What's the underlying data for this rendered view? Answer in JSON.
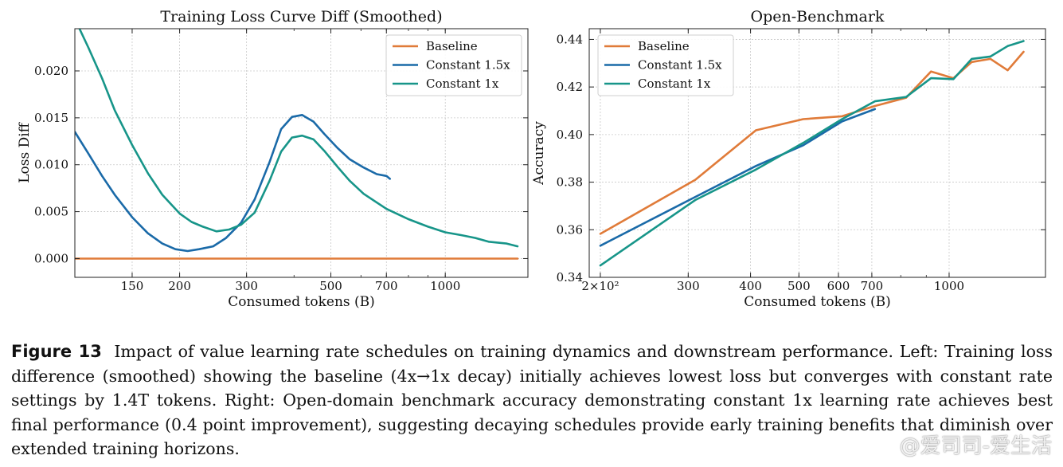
{
  "colors": {
    "baseline": "#e07b39",
    "constant_1_5x": "#1a6aa8",
    "constant_1x": "#179589"
  },
  "chart_data": [
    {
      "type": "line",
      "title": "Training Loss Curve Diff (Smoothed)",
      "xlabel": "Consumed tokens (B)",
      "ylabel": "Loss Diff",
      "xscale": "log",
      "xlim": [
        106,
        1650
      ],
      "ylim": [
        -0.002,
        0.0245
      ],
      "xticks": [
        150,
        200,
        300,
        500,
        700,
        1000
      ],
      "xtick_labels": [
        "150",
        "200",
        "300",
        "500",
        "700",
        "1000"
      ],
      "yticks": [
        0.0,
        0.005,
        0.01,
        0.015,
        0.02
      ],
      "ytick_labels": [
        "0.000",
        "0.005",
        "0.010",
        "0.015",
        "0.020"
      ],
      "grid": true,
      "legend_position": "top-right",
      "series": [
        {
          "name": "Baseline",
          "color": "#e07b39",
          "x": [
            106,
            200,
            400,
            800,
            1200,
            1550
          ],
          "y": [
            0,
            0,
            0,
            0,
            0,
            0
          ]
        },
        {
          "name": "Constant 1.5x",
          "color": "#1a6aa8",
          "x": [
            106,
            115,
            125,
            135,
            150,
            165,
            180,
            195,
            210,
            225,
            245,
            265,
            290,
            315,
            345,
            370,
            395,
            420,
            450,
            480,
            520,
            560,
            610,
            660,
            700,
            715
          ],
          "y": [
            0.0135,
            0.0112,
            0.0088,
            0.0068,
            0.0044,
            0.0027,
            0.0016,
            0.001,
            0.0008,
            0.001,
            0.0013,
            0.0022,
            0.0038,
            0.0063,
            0.0103,
            0.0138,
            0.0151,
            0.0153,
            0.0146,
            0.0133,
            0.0118,
            0.0106,
            0.0097,
            0.009,
            0.0088,
            0.0085
          ]
        },
        {
          "name": "Constant 1x",
          "color": "#179589",
          "x": [
            109,
            115,
            125,
            135,
            150,
            165,
            180,
            200,
            215,
            230,
            250,
            270,
            290,
            315,
            345,
            370,
            395,
            420,
            450,
            480,
            520,
            560,
            610,
            700,
            800,
            900,
            1000,
            1100,
            1200,
            1300,
            1450,
            1550
          ],
          "y": [
            0.0245,
            0.0225,
            0.0192,
            0.0158,
            0.0121,
            0.0091,
            0.0068,
            0.0048,
            0.0039,
            0.0034,
            0.0029,
            0.0031,
            0.0036,
            0.0049,
            0.0083,
            0.0114,
            0.0129,
            0.0131,
            0.0127,
            0.0115,
            0.0098,
            0.0083,
            0.0069,
            0.0053,
            0.0042,
            0.0034,
            0.0028,
            0.0025,
            0.0022,
            0.0018,
            0.0016,
            0.0013
          ]
        }
      ]
    },
    {
      "type": "line",
      "title": "Open-Benchmark",
      "xlabel": "Consumed tokens (B)",
      "ylabel": "Accuracy",
      "xscale": "log",
      "xlim": [
        190,
        1560
      ],
      "ylim": [
        0.34,
        0.4445
      ],
      "xticks": [
        200,
        300,
        400,
        500,
        600,
        700,
        1000
      ],
      "xtick_labels": [
        "2×10²",
        "300",
        "400",
        "500",
        "600",
        "700",
        "1000"
      ],
      "yticks": [
        0.34,
        0.36,
        0.38,
        0.4,
        0.42,
        0.44
      ],
      "ytick_labels": [
        "0.34",
        "0.36",
        "0.38",
        "0.40",
        "0.42",
        "0.44"
      ],
      "grid": true,
      "legend_position": "top-left",
      "series": [
        {
          "name": "Baseline",
          "color": "#e07b39",
          "x": [
            200,
            310,
            410,
            510,
            610,
            710,
            820,
            920,
            1020,
            1110,
            1210,
            1310,
            1410
          ],
          "y": [
            0.3583,
            0.381,
            0.4018,
            0.4065,
            0.4077,
            0.412,
            0.4155,
            0.4265,
            0.4237,
            0.4305,
            0.4318,
            0.427,
            0.4348
          ]
        },
        {
          "name": "Constant 1.5x",
          "color": "#1a6aa8",
          "x": [
            200,
            310,
            410,
            510,
            610,
            710
          ],
          "y": [
            0.3533,
            0.3738,
            0.3868,
            0.3955,
            0.4055,
            0.4107
          ]
        },
        {
          "name": "Constant 1x",
          "color": "#179589",
          "x": [
            200,
            310,
            410,
            510,
            610,
            710,
            820,
            920,
            1020,
            1110,
            1210,
            1310,
            1410
          ],
          "y": [
            0.345,
            0.3725,
            0.3853,
            0.3965,
            0.4065,
            0.414,
            0.4158,
            0.4237,
            0.4233,
            0.4318,
            0.4328,
            0.4372,
            0.4393
          ]
        }
      ]
    }
  ],
  "caption": {
    "label": "Figure 13",
    "text": "Impact of value learning rate schedules on training dynamics and downstream performance. Left: Training loss difference (smoothed) showing the baseline (4x→1x decay) initially achieves lowest loss but converges with constant rate settings by 1.4T tokens. Right: Open-domain benchmark accuracy demonstrating constant 1x learning rate achieves best final performance (0.4 point improvement), suggesting decaying schedules provide early training benefits that diminish over extended training horizons."
  },
  "watermark": "@爱司司-爱生活"
}
